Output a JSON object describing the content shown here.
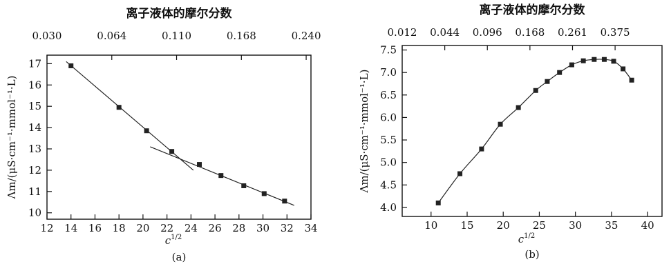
{
  "chart_data": [
    {
      "type": "scatter",
      "panel_label": "(a)",
      "title": "离子液体的摩尔分数",
      "xlabel": "c^1/2",
      "ylabel": "Λm/(μS·cm⁻¹·mmol⁻¹·L)",
      "xlim": [
        12,
        34
      ],
      "ylim": [
        9.7,
        17.4
      ],
      "x_ticks": [
        "12",
        "14",
        "16",
        "18",
        "20",
        "22",
        "24",
        "26",
        "28",
        "30",
        "32",
        "34"
      ],
      "y_ticks": [
        "10",
        "11",
        "12",
        "13",
        "14",
        "15",
        "16",
        "17"
      ],
      "top_ticks": [
        {
          "label": "0.030",
          "x": 12.0
        },
        {
          "label": "0.064",
          "x": 17.4
        },
        {
          "label": "0.110",
          "x": 22.8
        },
        {
          "label": "0.168",
          "x": 28.2
        },
        {
          "label": "0.240",
          "x": 33.6
        }
      ],
      "points": [
        [
          14.0,
          16.9
        ],
        [
          18.0,
          14.95
        ],
        [
          20.3,
          13.85
        ],
        [
          22.4,
          12.88
        ],
        [
          24.7,
          12.27
        ],
        [
          26.5,
          11.75
        ],
        [
          28.4,
          11.27
        ],
        [
          30.1,
          10.9
        ],
        [
          31.8,
          10.55
        ]
      ],
      "fit_lines": [
        [
          [
            13.6,
            17.1
          ],
          [
            24.2,
            12.0
          ]
        ],
        [
          [
            20.6,
            13.1
          ],
          [
            32.6,
            10.35
          ]
        ]
      ]
    },
    {
      "type": "scatter",
      "panel_label": "(b)",
      "title": "离子液体的摩尔分数",
      "xlabel": "c^1/2",
      "ylabel": "Λm/(μS·cm⁻¹·mmol⁻¹·L)",
      "xlim": [
        6,
        42
      ],
      "ylim": [
        3.8,
        7.6
      ],
      "x_ticks": [
        "10",
        "15",
        "20",
        "25",
        "30",
        "35",
        "40"
      ],
      "y_ticks": [
        "4.0",
        "4.5",
        "5.0",
        "5.5",
        "6.0",
        "6.5",
        "7.0",
        "7.5"
      ],
      "top_ticks": [
        {
          "label": "0.012",
          "x": 6.0
        },
        {
          "label": "0.044",
          "x": 11.9
        },
        {
          "label": "0.096",
          "x": 17.8
        },
        {
          "label": "0.168",
          "x": 23.7
        },
        {
          "label": "0.261",
          "x": 29.6
        },
        {
          "label": "0.375",
          "x": 35.5
        }
      ],
      "points": [
        [
          11.0,
          4.1
        ],
        [
          14.0,
          4.75
        ],
        [
          17.0,
          5.3
        ],
        [
          19.6,
          5.85
        ],
        [
          22.1,
          6.22
        ],
        [
          24.5,
          6.6
        ],
        [
          26.1,
          6.8
        ],
        [
          27.8,
          7.0
        ],
        [
          29.5,
          7.17
        ],
        [
          31.1,
          7.26
        ],
        [
          32.6,
          7.29
        ],
        [
          34.0,
          7.29
        ],
        [
          35.3,
          7.25
        ],
        [
          36.6,
          7.08
        ],
        [
          37.8,
          6.83
        ]
      ],
      "fit_lines": [
        [
          [
            11.0,
            4.1
          ],
          [
            14.0,
            4.75
          ],
          [
            17.0,
            5.3
          ],
          [
            19.6,
            5.85
          ],
          [
            22.1,
            6.22
          ],
          [
            24.5,
            6.6
          ],
          [
            26.1,
            6.8
          ],
          [
            27.8,
            7.0
          ],
          [
            29.5,
            7.17
          ],
          [
            31.1,
            7.26
          ],
          [
            32.6,
            7.29
          ],
          [
            34.0,
            7.29
          ],
          [
            35.3,
            7.25
          ],
          [
            36.6,
            7.08
          ],
          [
            37.8,
            6.83
          ]
        ]
      ]
    }
  ]
}
